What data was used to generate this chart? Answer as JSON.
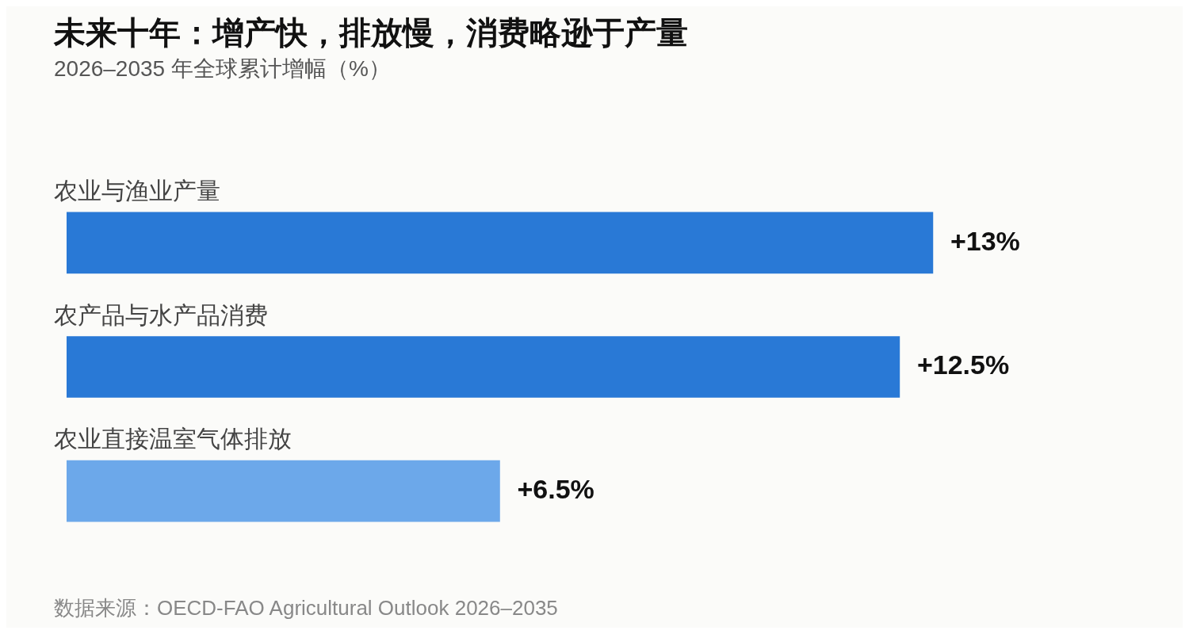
{
  "chart_data": {
    "type": "bar",
    "orientation": "horizontal",
    "title": "未来十年：增产快，排放慢，消费略逊于产量",
    "subtitle": "2026–2035 年全球累计增幅（%）",
    "categories": [
      "农业与渔业产量",
      "农产品与水产品消费",
      "农业直接温室气体排放"
    ],
    "values": [
      13,
      12.5,
      6.5
    ],
    "colors": [
      "#2979d6",
      "#2979d6",
      "#6ca8ea"
    ],
    "value_labels": [
      "+13%",
      "+12.5%",
      "+6.5%"
    ],
    "annotations": [
      "数据来源：OECD-FAO Agricultural Outlook 2026–2035"
    ]
  }
}
